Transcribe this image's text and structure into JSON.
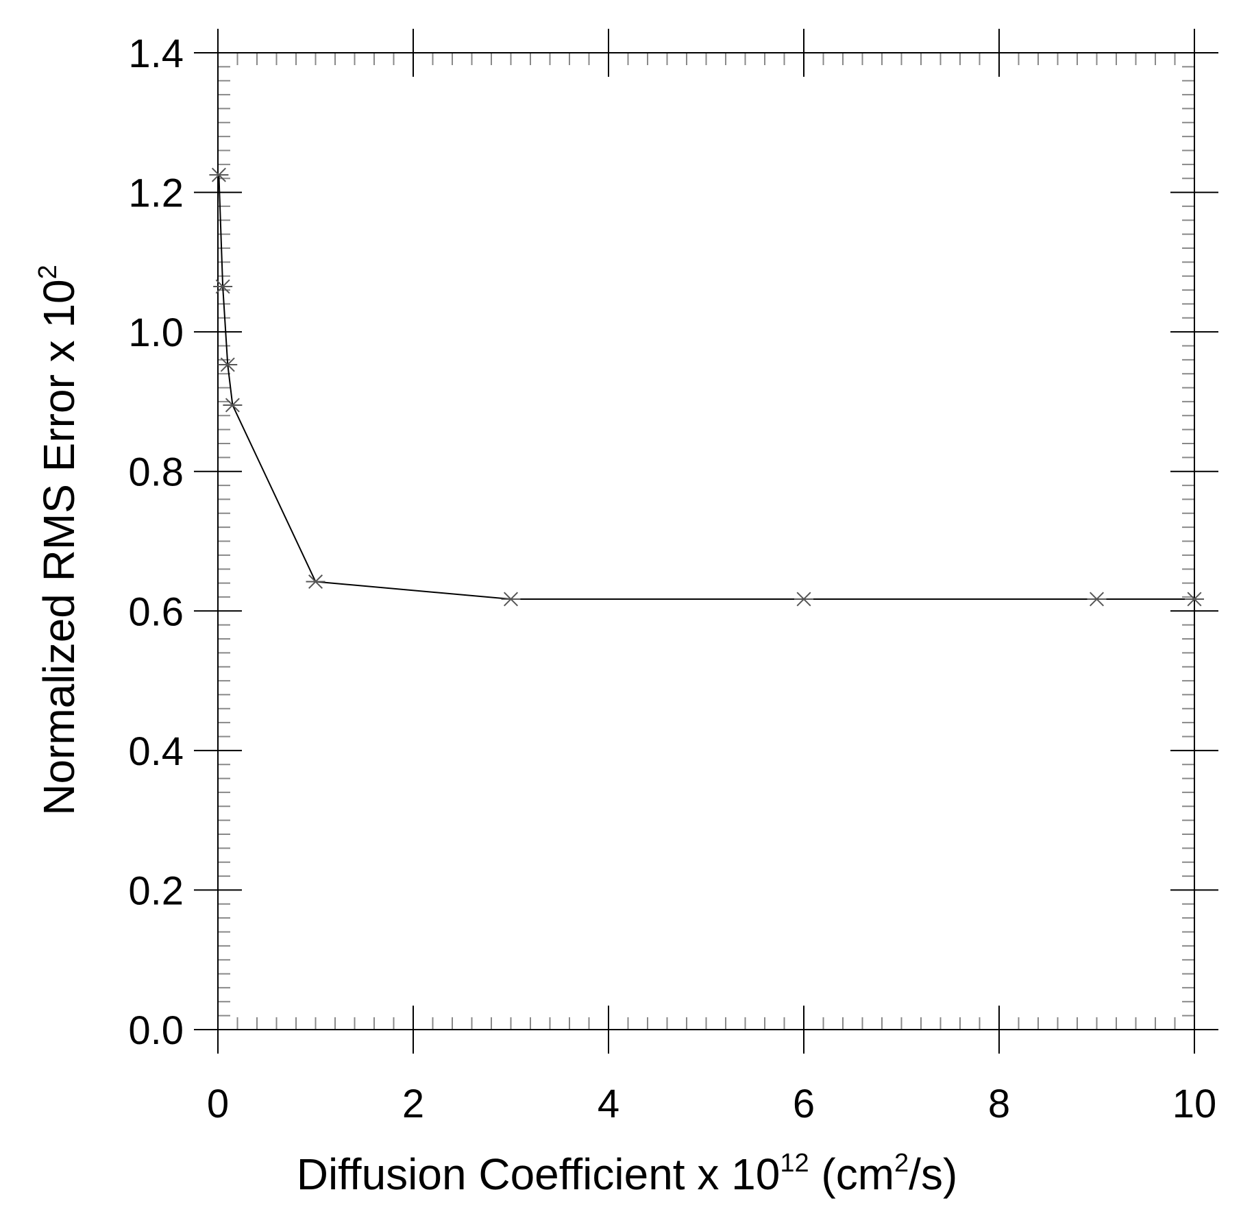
{
  "chart_data": {
    "type": "line",
    "title": "",
    "xlabel": {
      "main": "Diffusion Coefficient  x  10",
      "exp": "12",
      "unit_open": " (cm",
      "unit_exp": "2",
      "unit_close": "/s)"
    },
    "ylabel": {
      "main": "Normalized RMS Error  x  10",
      "exp": "2"
    },
    "xlim": [
      0,
      10
    ],
    "ylim": [
      0,
      1.4
    ],
    "x_ticks": [
      0,
      2,
      4,
      6,
      8,
      10
    ],
    "x_tick_labels": [
      "0",
      "2",
      "4",
      "6",
      "8",
      "10"
    ],
    "y_ticks": [
      0,
      0.2,
      0.4,
      0.6,
      0.8,
      1.0,
      1.2,
      1.4
    ],
    "y_tick_labels": [
      "0.0",
      "0.2",
      "0.4",
      "0.6",
      "0.8",
      "1.0",
      "1.2",
      "1.4"
    ],
    "x_minor_step": 0.2,
    "y_minor_step": 0.02,
    "grid": false,
    "legend": "none",
    "marker": "asterisk",
    "line_color": "#000000",
    "marker_color": "#555555",
    "series": [
      {
        "x": [
          0.01,
          0.05,
          0.1,
          0.15,
          1,
          3,
          6,
          9,
          10
        ],
        "y": [
          1.225,
          1.065,
          0.953,
          0.895,
          0.642,
          0.617,
          0.617,
          0.617,
          0.617
        ]
      }
    ]
  }
}
